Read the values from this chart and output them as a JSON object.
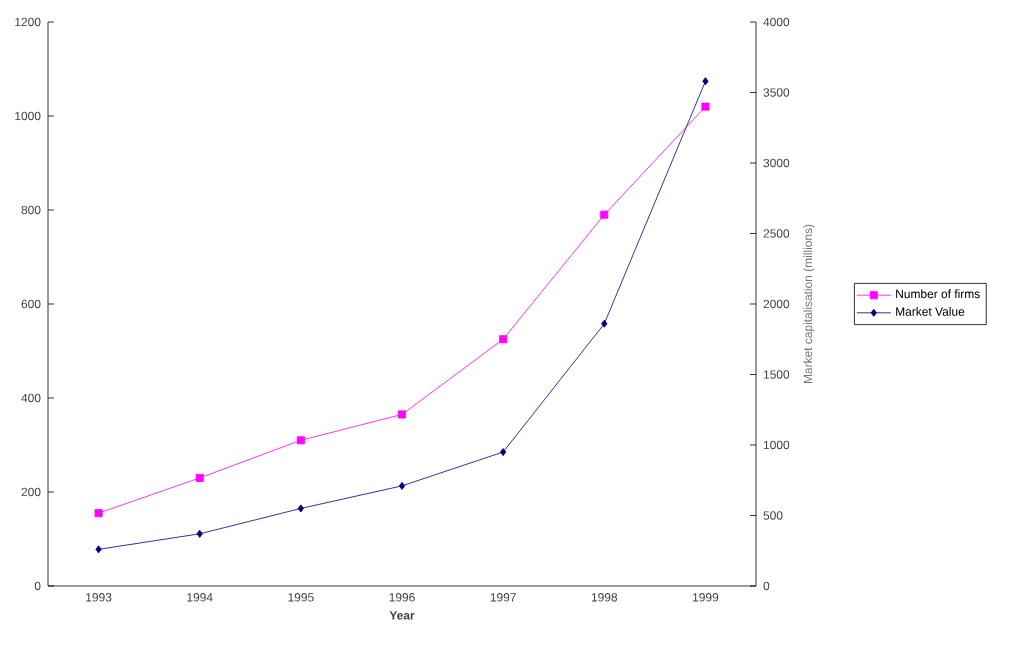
{
  "chart_data": {
    "type": "line",
    "xlabel": "Year",
    "y2label": "Market capitalisation (millions)",
    "categories": [
      "1993",
      "1994",
      "1995",
      "1996",
      "1997",
      "1998",
      "1999"
    ],
    "series": [
      {
        "name": "Number of firms",
        "color": "#ff00ff",
        "marker": "square",
        "values": [
          155,
          230,
          310,
          365,
          525,
          790,
          1020
        ]
      },
      {
        "name": "Market Value",
        "color": "#000080",
        "marker": "diamond",
        "axis": "y2",
        "values": [
          260,
          370,
          550,
          710,
          950,
          1860,
          3580
        ]
      }
    ],
    "ylim": [
      0,
      1200
    ],
    "yticks": [
      0,
      200,
      400,
      600,
      800,
      1000,
      1200
    ],
    "y2lim": [
      0,
      4000
    ],
    "y2ticks": [
      0,
      500,
      1000,
      1500,
      2000,
      2500,
      3000,
      3500,
      4000
    ],
    "grid": false,
    "legend": "right",
    "line_style": "solid"
  }
}
